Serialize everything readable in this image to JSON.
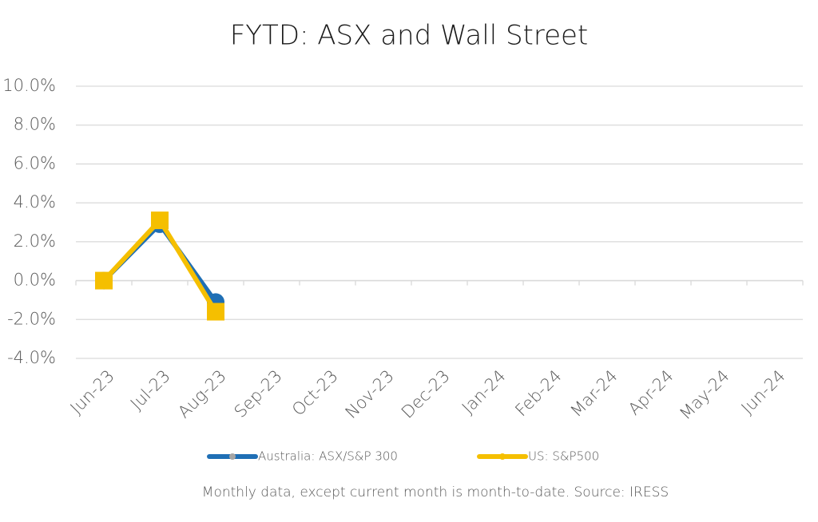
{
  "chart_data": {
    "type": "line",
    "title": "FYTD: ASX and Wall Street",
    "note": "Monthly data, except current month is month-to-date.  Source: IRESS",
    "categories": [
      "Jun-23",
      "Jul-23",
      "Aug-23",
      "Sep-23",
      "Oct-23",
      "Nov-23",
      "Dec-23",
      "Jan-24",
      "Feb-24",
      "Mar-24",
      "Apr-24",
      "May-24",
      "Jun-24"
    ],
    "series": [
      {
        "name": "Australia: ASX/S&P 300",
        "color": "#1f6fb5",
        "marker": "circle",
        "values": [
          0,
          2.9,
          -1.1,
          null,
          null,
          null,
          null,
          null,
          null,
          null,
          null,
          null,
          null
        ]
      },
      {
        "name": "US: S&P500",
        "color": "#f5bf00",
        "marker": "square",
        "values": [
          0,
          3.1,
          -1.6,
          null,
          null,
          null,
          null,
          null,
          null,
          null,
          null,
          null,
          null
        ]
      }
    ],
    "ylim": [
      -4,
      10
    ],
    "yticks": [
      {
        "value": -4,
        "label": "-4.0%"
      },
      {
        "value": -2,
        "label": "-2.0%"
      },
      {
        "value": 0,
        "label": "0.0%"
      },
      {
        "value": 2,
        "label": "2.0%"
      },
      {
        "value": 4,
        "label": "4.0%"
      },
      {
        "value": 6,
        "label": "6.0%"
      },
      {
        "value": 8,
        "label": "8.0%"
      },
      {
        "value": 10,
        "label": "10.0%"
      }
    ],
    "grid": true,
    "legend": "bottom"
  }
}
